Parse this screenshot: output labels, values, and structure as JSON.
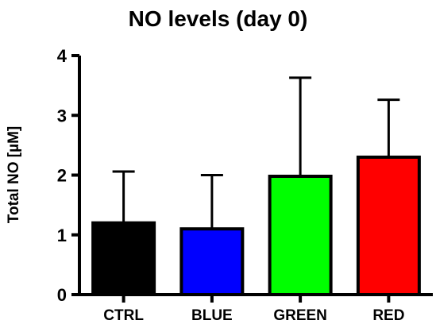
{
  "chart_data": {
    "type": "bar",
    "title": "NO levels (day 0)",
    "xlabel": "",
    "ylabel": "Total NO [µM]",
    "ylim": [
      0,
      4
    ],
    "yticks": [
      0,
      1,
      2,
      3,
      4
    ],
    "grid": false,
    "categories": [
      "CTRL",
      "BLUE",
      "GREEN",
      "RED"
    ],
    "values": [
      1.2,
      1.1,
      1.98,
      2.3
    ],
    "error_upper": [
      2.06,
      2.0,
      3.63,
      3.26
    ],
    "colors": [
      "#000000",
      "#0000ff",
      "#00ff00",
      "#ff0000"
    ]
  }
}
